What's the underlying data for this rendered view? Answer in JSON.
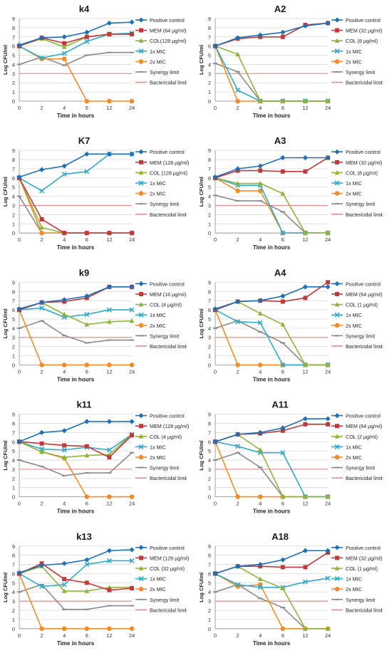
{
  "colors": {
    "positive": "#1f6fb4",
    "mem": "#c0393b",
    "col": "#8db53e",
    "mic1": "#31a9c8",
    "mic2": "#f28c28",
    "synergy": "#8b8b8b",
    "bactericidal": "#e58c8a"
  },
  "chart_data": [
    {
      "type": "line",
      "title": "k4",
      "xlabel": "Time in hours",
      "ylabel": "Log CFU/ml",
      "categories": [
        "0",
        "2",
        "4",
        "6",
        "12",
        "24"
      ],
      "ylim": [
        0,
        9
      ],
      "grid": true,
      "legend": "right",
      "series": [
        {
          "name": "Positive control",
          "values": [
            6.1,
            6.9,
            7.0,
            7.5,
            8.5,
            8.6
          ]
        },
        {
          "name": "MEM (64 μg/ml)",
          "values": [
            6.0,
            6.9,
            6.3,
            7.0,
            7.3,
            7.3
          ]
        },
        {
          "name": "COL(128 μg/ml)",
          "values": [
            6.0,
            6.8,
            5.9,
            7.0,
            7.3,
            7.3
          ]
        },
        {
          "name": "1x MIC",
          "values": [
            6.0,
            4.7,
            5.2,
            6.5,
            7.3,
            7.4
          ]
        },
        {
          "name": "2x MIC",
          "values": [
            6.0,
            4.6,
            4.6,
            0,
            0,
            0
          ]
        },
        {
          "name": "Synergy limit",
          "values": [
            4.0,
            4.8,
            3.9,
            5.0,
            5.3,
            5.3
          ]
        },
        {
          "name": "Bactericidal limit",
          "values": [
            3,
            3,
            3,
            3,
            3,
            3
          ]
        }
      ]
    },
    {
      "type": "line",
      "title": "A2",
      "xlabel": "TIme in hours",
      "ylabel": "Log CFU/ml",
      "categories": [
        "0",
        "2",
        "4",
        "6",
        "12",
        "24"
      ],
      "ylim": [
        0,
        9
      ],
      "grid": true,
      "legend": "right",
      "series": [
        {
          "name": "Positive control",
          "values": [
            6.0,
            6.9,
            7.2,
            7.5,
            8.2,
            8.5
          ]
        },
        {
          "name": "MEM (32 μg/ml)",
          "values": [
            6.0,
            6.8,
            7.0,
            7.0,
            8.3,
            8.5
          ]
        },
        {
          "name": "COL (8 μg/ml)",
          "values": [
            6.0,
            5.1,
            0,
            0,
            0,
            0
          ]
        },
        {
          "name": "1x MIC",
          "values": [
            6.0,
            1.2,
            0,
            0,
            0,
            0
          ]
        },
        {
          "name": "2x MIC",
          "values": [
            6.0,
            0,
            0,
            0,
            0,
            0
          ]
        },
        {
          "name": "Synergy limit",
          "values": [
            4.1,
            3.2,
            0,
            0,
            0,
            0
          ]
        },
        {
          "name": "Bactericidal limit",
          "values": [
            3,
            3,
            3,
            3,
            3,
            3
          ]
        }
      ]
    },
    {
      "type": "line",
      "title": "K7",
      "xlabel": "Time in hours",
      "ylabel": "Log CFU/ml",
      "categories": [
        "0",
        "2",
        "4",
        "6",
        "12",
        "24"
      ],
      "ylim": [
        0,
        9
      ],
      "grid": true,
      "legend": "right",
      "series": [
        {
          "name": "Positive control",
          "values": [
            6.1,
            6.9,
            7.3,
            8.6,
            8.6,
            8.6
          ]
        },
        {
          "name": "MEM (128 μg/ml)",
          "values": [
            6.0,
            1.5,
            0,
            0,
            0,
            0
          ]
        },
        {
          "name": "COL (128 μg/ml)",
          "values": [
            6.0,
            0.6,
            0,
            0,
            0,
            0
          ]
        },
        {
          "name": "1x MIC",
          "values": [
            6.0,
            4.6,
            6.4,
            6.7,
            8.6,
            8.6
          ]
        },
        {
          "name": "2x MIC",
          "values": [
            6.0,
            0,
            0,
            0,
            0,
            0
          ]
        },
        {
          "name": "Synergy limit",
          "values": [
            4.0,
            0,
            0,
            0,
            0,
            0
          ]
        },
        {
          "name": "Bactericidal limit",
          "values": [
            3,
            3,
            3,
            3,
            3,
            3
          ]
        }
      ]
    },
    {
      "type": "line",
      "title": "A3",
      "xlabel": "Time in hours",
      "ylabel": "Log CFU/ml",
      "categories": [
        "0",
        "2",
        "4",
        "6",
        "12",
        "24"
      ],
      "ylim": [
        0,
        9
      ],
      "grid": true,
      "legend": "right",
      "series": [
        {
          "name": "Positive control",
          "values": [
            6.1,
            7.0,
            7.3,
            8.2,
            8.2,
            8.2
          ]
        },
        {
          "name": "MEM (32 μg/ml)",
          "values": [
            6.0,
            6.8,
            6.8,
            6.7,
            6.7,
            8.2
          ]
        },
        {
          "name": "COL (8 μg/ml)",
          "values": [
            6.0,
            5.4,
            5.4,
            4.3,
            0,
            0
          ]
        },
        {
          "name": "1x MIC",
          "values": [
            6.0,
            5.2,
            5.2,
            0,
            0,
            0
          ]
        },
        {
          "name": "2x MIC",
          "values": [
            6.0,
            4.6,
            4.6,
            0,
            0,
            0
          ]
        },
        {
          "name": "Synergy limit",
          "values": [
            4.1,
            3.5,
            3.5,
            2.3,
            0,
            0
          ]
        },
        {
          "name": "Bactericidal limit",
          "values": [
            3,
            3,
            3,
            3,
            3,
            3
          ]
        }
      ]
    },
    {
      "type": "line",
      "title": "k9",
      "xlabel": "Time in hours",
      "ylabel": "Log CFU/ml",
      "categories": [
        "0",
        "2",
        "4",
        "6",
        "12",
        "24"
      ],
      "ylim": [
        0,
        9
      ],
      "grid": true,
      "legend": "right",
      "series": [
        {
          "name": "Positive control",
          "values": [
            6.1,
            6.8,
            7.1,
            7.5,
            8.5,
            8.5
          ]
        },
        {
          "name": "MEM (16 μg/ml)",
          "values": [
            6.0,
            6.8,
            6.9,
            7.3,
            8.5,
            8.5
          ]
        },
        {
          "name": "COL (4 μg/ml)",
          "values": [
            6.0,
            6.8,
            5.5,
            4.4,
            4.7,
            4.8
          ]
        },
        {
          "name": "1x MIC",
          "values": [
            6.0,
            6.2,
            5.2,
            5.5,
            6.0,
            6.0
          ]
        },
        {
          "name": "2x MIC",
          "values": [
            6.0,
            0,
            0,
            0,
            0,
            0
          ]
        },
        {
          "name": "Synergy limit",
          "values": [
            4.0,
            4.8,
            3.2,
            2.4,
            2.7,
            2.7
          ]
        },
        {
          "name": "Bactericidal limit",
          "values": [
            3,
            3,
            3,
            3,
            3,
            3
          ]
        }
      ]
    },
    {
      "type": "line",
      "title": "A4",
      "xlabel": "Time in hours",
      "ylabel": "Log CFU/ml",
      "categories": [
        "0",
        "2",
        "4",
        "6",
        "12",
        "24"
      ],
      "ylim": [
        0,
        9
      ],
      "grid": true,
      "legend": "right",
      "series": [
        {
          "name": "Positive control",
          "values": [
            6.1,
            6.9,
            7.0,
            7.5,
            8.5,
            8.5
          ]
        },
        {
          "name": "MEM (64 μg/ml)",
          "values": [
            6.0,
            6.9,
            7.0,
            6.9,
            7.3,
            9.0
          ]
        },
        {
          "name": "COL (1 μg/ml)",
          "values": [
            6.0,
            6.9,
            5.6,
            4.4,
            0,
            0
          ]
        },
        {
          "name": "1x MIC",
          "values": [
            6.0,
            4.7,
            4.6,
            0,
            0,
            0
          ]
        },
        {
          "name": "2x MIC",
          "values": [
            6.0,
            0,
            0,
            0,
            0,
            0
          ]
        },
        {
          "name": "Synergy limit",
          "values": [
            4.0,
            4.8,
            3.6,
            2.4,
            0,
            0
          ]
        },
        {
          "name": "Bactericidal limit",
          "values": [
            3,
            3,
            3,
            3,
            3,
            3
          ]
        }
      ]
    },
    {
      "type": "line",
      "title": "k11",
      "xlabel": "Time in hours",
      "ylabel": "Log CFU/ml",
      "categories": [
        "0",
        "2",
        "4",
        "6",
        "12",
        "24"
      ],
      "ylim": [
        0,
        9
      ],
      "grid": true,
      "legend": "right",
      "series": [
        {
          "name": "Positive control",
          "values": [
            6.0,
            7.0,
            7.2,
            8.2,
            8.2,
            8.2
          ]
        },
        {
          "name": "MEM (128 μg/ml)",
          "values": [
            6.0,
            5.8,
            5.6,
            5.5,
            4.3,
            6.7
          ]
        },
        {
          "name": "COL (4 μg/ml)",
          "values": [
            6.0,
            4.9,
            4.3,
            4.5,
            4.6,
            6.8
          ]
        },
        {
          "name": "1x MIC",
          "values": [
            6.0,
            5.2,
            5.1,
            5.4,
            5.1,
            6.8
          ]
        },
        {
          "name": "2x MIC",
          "values": [
            6.0,
            4.9,
            4.2,
            0,
            0,
            0
          ]
        },
        {
          "name": "Synergy limit",
          "values": [
            4.0,
            3.3,
            2.3,
            2.6,
            2.6,
            4.8
          ]
        },
        {
          "name": "Bactericidal limit",
          "values": [
            3,
            3,
            3,
            3,
            3,
            3
          ]
        }
      ]
    },
    {
      "type": "line",
      "title": "A11",
      "xlabel": "Time in hours",
      "ylabel": "Log CFU/ml",
      "categories": [
        "0",
        "2",
        "4",
        "6",
        "12",
        "24"
      ],
      "ylim": [
        0,
        9
      ],
      "grid": true,
      "legend": "right",
      "series": [
        {
          "name": "Positive control",
          "values": [
            6.0,
            6.8,
            7.0,
            7.5,
            8.5,
            8.5
          ]
        },
        {
          "name": "MEM (64 μg/ml)",
          "values": [
            6.0,
            6.8,
            6.9,
            7.2,
            7.9,
            7.9
          ]
        },
        {
          "name": "COL (2 μg/ml)",
          "values": [
            6.0,
            6.8,
            5.1,
            0,
            0,
            0
          ]
        },
        {
          "name": "1x MIC",
          "values": [
            6.0,
            5.5,
            4.8,
            4.8,
            0,
            0
          ]
        },
        {
          "name": "2x MIC",
          "values": [
            6.0,
            0,
            0,
            0,
            0,
            0
          ]
        },
        {
          "name": "Synergy limit",
          "values": [
            4.0,
            4.8,
            3.2,
            0,
            0,
            0
          ]
        },
        {
          "name": "Bactericidal limit",
          "values": [
            3,
            3,
            3,
            3,
            3,
            3
          ]
        }
      ]
    },
    {
      "type": "line",
      "title": "k13",
      "xlabel": "Time in hours",
      "ylabel": "Log CFU/ml",
      "categories": [
        "0",
        "2",
        "4",
        "6",
        "12",
        "24"
      ],
      "ylim": [
        0,
        9
      ],
      "grid": true,
      "legend": "right",
      "series": [
        {
          "name": "Positive control",
          "values": [
            6.1,
            6.9,
            7.1,
            7.5,
            8.5,
            8.6
          ]
        },
        {
          "name": "MEM (128 μg/ml)",
          "values": [
            6.0,
            7.1,
            5.4,
            5.0,
            4.2,
            4.4
          ]
        },
        {
          "name": "COL (32 μg/ml)",
          "values": [
            6.0,
            6.8,
            4.1,
            4.1,
            4.5,
            4.5
          ]
        },
        {
          "name": "1x MIC",
          "values": [
            6.0,
            4.6,
            4.8,
            7.0,
            7.4,
            7.4
          ]
        },
        {
          "name": "2x MIC",
          "values": [
            6.0,
            0,
            0,
            0,
            0,
            0
          ]
        },
        {
          "name": "Synergy limit",
          "values": [
            4.0,
            4.8,
            2.1,
            2.1,
            2.5,
            2.5
          ]
        },
        {
          "name": "Bactericidal limit",
          "values": [
            3,
            3,
            3,
            3,
            3,
            3
          ]
        }
      ]
    },
    {
      "type": "line",
      "title": "A18",
      "xlabel": "Time in hours",
      "ylabel": "Log CFU/ml",
      "categories": [
        "0",
        "2",
        "4",
        "6",
        "12",
        "24"
      ],
      "ylim": [
        0,
        9
      ],
      "grid": true,
      "legend": "right",
      "series": [
        {
          "name": "Positive control",
          "values": [
            6.0,
            6.8,
            7.0,
            7.5,
            8.5,
            8.5
          ]
        },
        {
          "name": "MEM (32 μg/ml)",
          "values": [
            6.0,
            6.8,
            6.8,
            6.7,
            6.7,
            8.3
          ]
        },
        {
          "name": "COL (1 μg/ml)",
          "values": [
            6.0,
            6.8,
            5.4,
            4.4,
            0,
            0
          ]
        },
        {
          "name": "1x MIC",
          "values": [
            6.0,
            4.8,
            4.5,
            4.5,
            5.1,
            5.5
          ]
        },
        {
          "name": "2x MIC",
          "values": [
            6.0,
            4.6,
            4.8,
            0,
            0,
            0
          ]
        },
        {
          "name": "Synergy limit",
          "values": [
            4.0,
            4.8,
            3.3,
            2.3,
            0,
            0
          ]
        },
        {
          "name": "Bactericidal limit",
          "values": [
            3,
            3,
            3,
            3,
            3,
            3
          ]
        }
      ]
    }
  ]
}
